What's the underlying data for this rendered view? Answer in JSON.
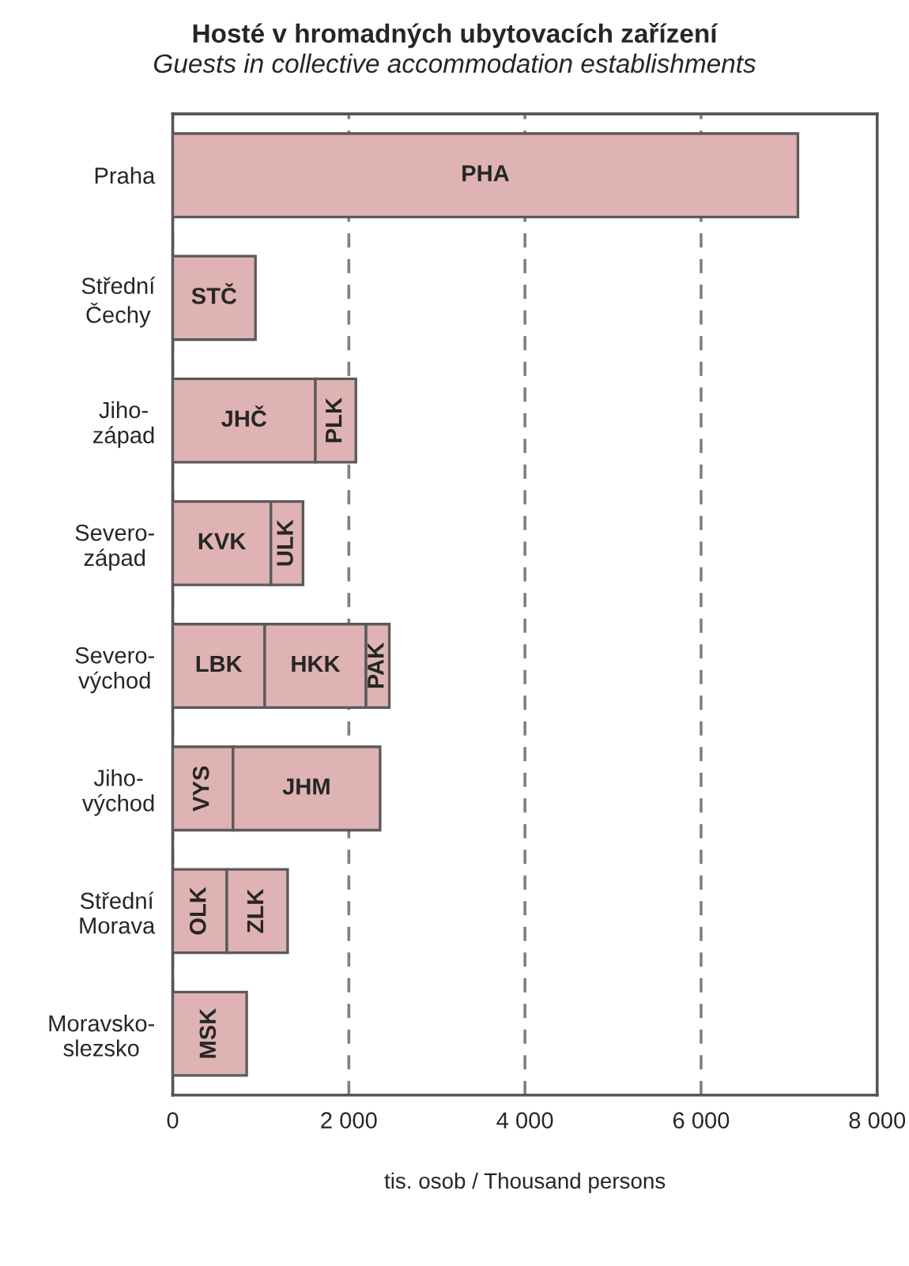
{
  "chart_data": {
    "type": "bar",
    "orientation": "horizontal",
    "stacked": true,
    "title": "Hosté v hromadných ubytovacích zařízení",
    "subtitle": "Guests in collective accommodation establishments",
    "xlabel": "tis. osob / Thousand persons",
    "categories": [
      "Praha",
      "Střední\nČechy",
      "Jiho-\nzápad",
      "Severo-\nzápad",
      "Severo-\nvýchod",
      "Jiho-\nvýchod",
      "Střední\nMorava",
      "Moravsko-\nslezsko"
    ],
    "series": [
      {
        "color": "#dfb3b3",
        "values": [
          7100,
          940,
          1620,
          1115,
          1045,
          685,
          615,
          840
        ],
        "value_labels": [
          "PHA",
          "STČ",
          "JHČ",
          "KVK",
          "LBK",
          "VYS",
          "OLK",
          "MSK"
        ]
      },
      {
        "color": "#dfb3b3",
        "values": [
          null,
          null,
          460,
          365,
          1150,
          1670,
          690,
          null
        ],
        "value_labels": [
          null,
          null,
          "PLK",
          "ULK",
          "HKK",
          "JHM",
          "ZLK",
          null
        ]
      },
      {
        "color": "#dfb3b3",
        "values": [
          null,
          null,
          null,
          null,
          265,
          null,
          null,
          null
        ],
        "value_labels": [
          null,
          null,
          null,
          null,
          "PAK",
          null,
          null,
          null
        ]
      }
    ],
    "xlim": [
      0,
      8000
    ],
    "xticks": [
      0,
      {
        "value": 2000,
        "label": "2 000"
      },
      {
        "value": 4000,
        "label": "4 000"
      },
      {
        "value": 6000,
        "label": "6 000"
      },
      {
        "value": 8000,
        "label": "8 000"
      }
    ],
    "grid": "x"
  }
}
